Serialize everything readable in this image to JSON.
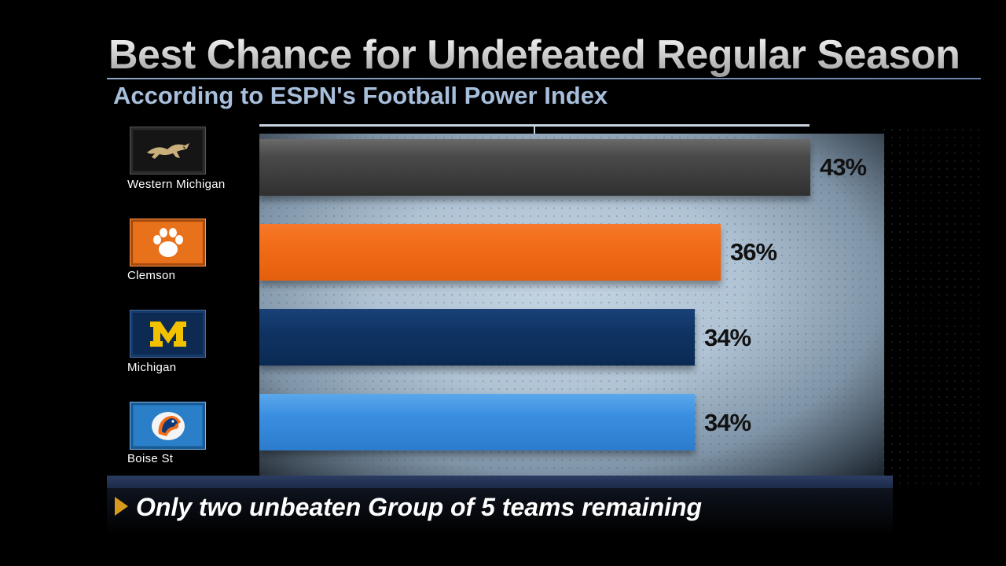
{
  "title": "Best Chance for Undefeated Regular Season",
  "subtitle": "According to ESPN's Football Power Index",
  "footnote": "Only two unbeaten Group of 5 teams remaining",
  "colors": {
    "western_michigan": "#3a3a3a",
    "clemson": "#f26b17",
    "michigan": "#0e3362",
    "boise_st": "#3a8ee0",
    "accent_arrow": "#d89a1c"
  },
  "chart_data": {
    "type": "bar",
    "orientation": "horizontal",
    "title": "Best Chance for Undefeated Regular Season",
    "subtitle": "According to ESPN's Football Power Index",
    "categories": [
      "Western Michigan",
      "Clemson",
      "Michigan",
      "Boise St"
    ],
    "values": [
      43,
      36,
      34,
      34
    ],
    "labels": [
      "43%",
      "36%",
      "34%",
      "34%"
    ],
    "xlim": [
      0,
      43
    ],
    "grid": "dotted background",
    "legend": "none"
  },
  "teams": [
    {
      "name": "Western Michigan",
      "logo_icon": "bronco-horse-icon"
    },
    {
      "name": "Clemson",
      "logo_icon": "tiger-paw-icon"
    },
    {
      "name": "Michigan",
      "logo_icon": "block-m-icon"
    },
    {
      "name": "Boise St",
      "logo_icon": "bronco-head-icon"
    }
  ]
}
